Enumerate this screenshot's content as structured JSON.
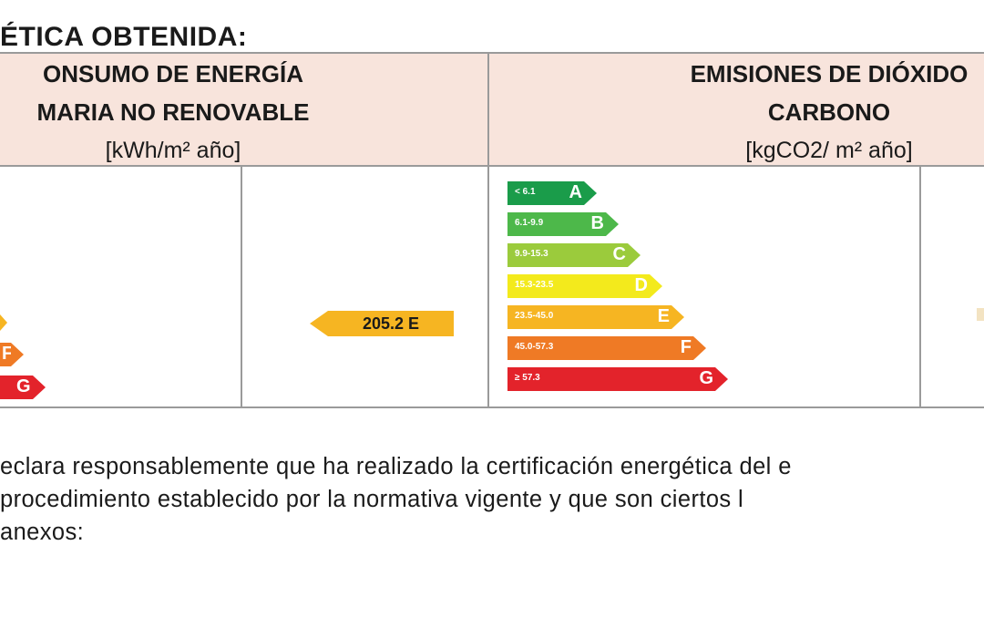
{
  "title": "ÉTICA OBTENIDA:",
  "left_header": {
    "line1": "ONSUMO DE ENERGÍA",
    "line2": "MARIA NO RENOVABLE",
    "unit": "[kWh/m² año]"
  },
  "right_header": {
    "line1": "EMISIONES DE DIÓXIDO",
    "line2": "CARBONO",
    "unit": "[kgCO2/ m² año]"
  },
  "primary_energy_indicator": "205.2 E",
  "left_partial_letters": [
    "F",
    "G"
  ],
  "emission_scale": [
    {
      "range": "< 6.1",
      "letter": "A",
      "color": "#1a9c4a"
    },
    {
      "range": "6.1-9.9",
      "letter": "B",
      "color": "#4db84a"
    },
    {
      "range": "9.9-15.3",
      "letter": "C",
      "color": "#9bcb3c"
    },
    {
      "range": "15.3-23.5",
      "letter": "D",
      "color": "#f3ea1c"
    },
    {
      "range": "23.5-45.0",
      "letter": "E",
      "color": "#f6b522"
    },
    {
      "range": "45.0-57.3",
      "letter": "F",
      "color": "#ef7a25"
    },
    {
      "range": "≥ 57.3",
      "letter": "G",
      "color": "#e3232b"
    }
  ],
  "paragraph": {
    "line1": "eclara responsablemente que ha realizado la certificación energética del e",
    "line2": " procedimiento establecido por la normativa vigente y que son ciertos l",
    "line3": "anexos:"
  }
}
